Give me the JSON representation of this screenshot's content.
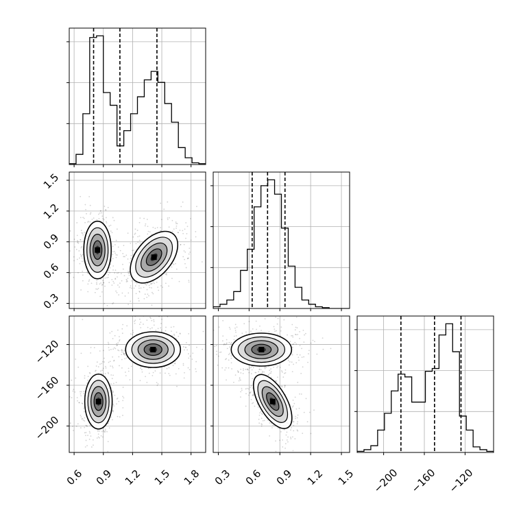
{
  "chart_data": {
    "type": "corner",
    "title": "",
    "parameters": [
      "",
      "",
      ""
    ],
    "grid": true,
    "panels": {
      "hist_p0": {
        "type": "histogram",
        "x_range": [
          0.55,
          1.95
        ],
        "bin_edges": [
          0.55,
          0.62,
          0.69,
          0.76,
          0.83,
          0.9,
          0.97,
          1.04,
          1.11,
          1.18,
          1.25,
          1.32,
          1.39,
          1.46,
          1.53,
          1.6,
          1.67,
          1.74,
          1.81,
          1.88,
          1.95
        ],
        "counts": [
          1,
          12,
          60,
          150,
          152,
          85,
          70,
          22,
          40,
          60,
          80,
          100,
          110,
          97,
          72,
          50,
          20,
          8,
          2,
          1
        ],
        "quantile_lines": [
          0.8,
          1.07,
          1.45
        ]
      },
      "hist_p1": {
        "type": "histogram",
        "x_range": [
          0.25,
          1.58
        ],
        "bin_edges": [
          0.25,
          0.3165,
          0.383,
          0.4495,
          0.516,
          0.5825,
          0.649,
          0.7155,
          0.782,
          0.8485,
          0.915,
          0.9815,
          1.048,
          1.1145,
          1.181,
          1.2475,
          1.314,
          1.3805,
          1.447,
          1.5135,
          1.58
        ],
        "counts": [
          2,
          5,
          10,
          20,
          45,
          70,
          120,
          145,
          152,
          135,
          95,
          50,
          25,
          10,
          5,
          2,
          1,
          0,
          0,
          0
        ],
        "quantile_lines": [
          0.63,
          0.78,
          0.95
        ]
      },
      "hist_p2": {
        "type": "histogram",
        "x_range": [
          -226,
          -92
        ],
        "bin_edges": [
          -226,
          -219.3,
          -212.6,
          -205.9,
          -199.2,
          -192.5,
          -185.8,
          -179.1,
          -172.4,
          -165.7,
          -159.0,
          -152.3,
          -145.6,
          -138.9,
          -132.2,
          -125.5,
          -118.8,
          -112.1,
          -105.4,
          -98.7,
          -92.0
        ],
        "counts": [
          2,
          5,
          12,
          40,
          70,
          110,
          140,
          135,
          90,
          90,
          145,
          150,
          210,
          230,
          180,
          65,
          40,
          10,
          5,
          2
        ],
        "quantile_lines": [
          -183,
          -150,
          -124
        ]
      },
      "p1_vs_p0": {
        "x_range": [
          0.55,
          1.95
        ],
        "y_range": [
          0.25,
          1.58
        ],
        "modes": [
          {
            "x": 0.84,
            "y": 0.82
          },
          {
            "x": 1.42,
            "y": 0.75
          }
        ]
      },
      "p2_vs_p0": {
        "x_range": [
          0.55,
          1.95
        ],
        "y_range": [
          -226,
          -92
        ],
        "modes": [
          {
            "x": 0.85,
            "y": -176
          },
          {
            "x": 1.41,
            "y": -125
          }
        ]
      },
      "p2_vs_p1": {
        "x_range": [
          0.25,
          1.58
        ],
        "y_range": [
          -226,
          -92
        ],
        "modes": [
          {
            "x": 0.72,
            "y": -125
          },
          {
            "x": 0.83,
            "y": -176
          }
        ]
      }
    },
    "tick_labels": {
      "p0": [
        "0.6",
        "0.9",
        "1.2",
        "1.5",
        "1.8"
      ],
      "p1": [
        "0.3",
        "0.6",
        "0.9",
        "1.2",
        "1.5"
      ],
      "p2": [
        "−200",
        "−160",
        "−120"
      ]
    },
    "tick_values": {
      "p0": [
        0.6,
        0.9,
        1.2,
        1.5,
        1.8
      ],
      "p1": [
        0.3,
        0.6,
        0.9,
        1.2,
        1.5
      ],
      "p2": [
        -200,
        -160,
        -120
      ]
    }
  },
  "colors": {
    "frame": "#000000",
    "grid": "#b0b0b0",
    "points": "#000000",
    "density": "#000000",
    "contour": "#000000"
  }
}
